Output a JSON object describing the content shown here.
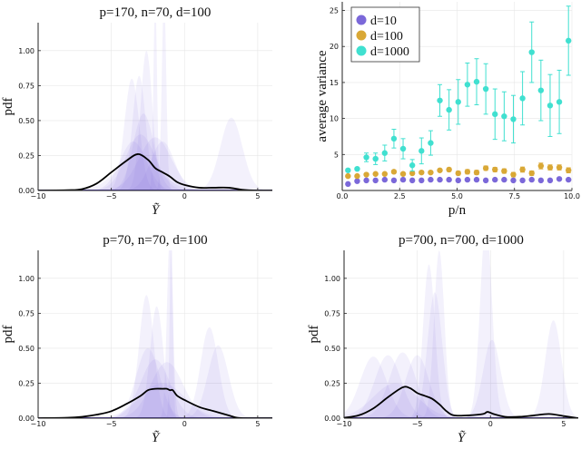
{
  "chart_data": [
    {
      "type": "area",
      "title": "p=170, n=70, d=100",
      "xlabel": "Ỹ",
      "ylabel": "pdf",
      "xlim": [
        -10,
        6
      ],
      "ylim": [
        0,
        1.2
      ],
      "xticks": [
        -10,
        -5,
        0,
        5
      ],
      "yticks": [
        0,
        0.25,
        0.5,
        0.75,
        1.0
      ],
      "xtick_labels": [
        "−10",
        "−5",
        "0",
        "5"
      ],
      "ytick_labels": [
        "0.00",
        "0.25",
        "0.50",
        "0.75",
        "1.00"
      ],
      "grid": true,
      "colors": {
        "mean": "#000000",
        "samples": "#7b68d9"
      },
      "mean_curve": {
        "x": [
          -10,
          -8,
          -7,
          -6,
          -5,
          -4,
          -3.2,
          -2.5,
          -2,
          -1.5,
          -1,
          -0.5,
          0,
          1,
          2,
          3,
          4,
          5,
          6
        ],
        "y": [
          0,
          0.002,
          0.01,
          0.05,
          0.13,
          0.21,
          0.26,
          0.22,
          0.16,
          0.13,
          0.1,
          0.06,
          0.04,
          0.02,
          0.02,
          0.02,
          0.005,
          0,
          0
        ]
      },
      "sample_densities": [
        {
          "mu": -3.1,
          "sigma": 0.45,
          "peak": 0.82
        },
        {
          "mu": -3.6,
          "sigma": 0.5,
          "peak": 0.8
        },
        {
          "mu": -2.6,
          "sigma": 0.4,
          "peak": 1.0
        },
        {
          "mu": -2.0,
          "sigma": 0.12,
          "peak": 1.4
        },
        {
          "mu": -1.4,
          "sigma": 0.15,
          "peak": 1.4
        },
        {
          "mu": -3.0,
          "sigma": 1.0,
          "peak": 0.4
        },
        {
          "mu": -2.0,
          "sigma": 1.1,
          "peak": 0.38
        },
        {
          "mu": -3.5,
          "sigma": 0.9,
          "peak": 0.35
        },
        {
          "mu": -1.5,
          "sigma": 0.8,
          "peak": 0.35
        },
        {
          "mu": -2.8,
          "sigma": 0.7,
          "peak": 0.55
        },
        {
          "mu": 3.2,
          "sigma": 0.75,
          "peak": 0.52
        },
        {
          "mu": -3.2,
          "sigma": 1.4,
          "peak": 0.25
        }
      ]
    },
    {
      "type": "scatter",
      "xlabel": "p/n",
      "ylabel": "average variance",
      "xlim": [
        0,
        10
      ],
      "ylim": [
        0,
        26.2
      ],
      "xticks": [
        0,
        2.5,
        5,
        7.5,
        10
      ],
      "yticks": [
        5,
        10,
        15,
        20,
        25
      ],
      "xtick_labels": [
        "0.0",
        "2.5",
        "5.0",
        "7.5",
        "10.0"
      ],
      "ytick_labels": [
        "5",
        "10",
        "15",
        "20",
        "25"
      ],
      "grid": true,
      "legend_position": "top-left",
      "x": [
        0.25,
        0.65,
        1.05,
        1.45,
        1.85,
        2.25,
        2.65,
        3.05,
        3.45,
        3.85,
        4.25,
        4.65,
        5.05,
        5.45,
        5.85,
        6.25,
        6.65,
        7.05,
        7.45,
        7.85,
        8.25,
        8.65,
        9.05,
        9.45,
        9.85
      ],
      "series": [
        {
          "name": "d=10",
          "color": "#7b68d9",
          "values": [
            0.9,
            1.3,
            1.4,
            1.4,
            1.5,
            1.4,
            1.5,
            1.4,
            1.4,
            1.5,
            1.5,
            1.5,
            1.4,
            1.5,
            1.5,
            1.4,
            1.5,
            1.5,
            1.4,
            1.4,
            1.5,
            1.4,
            1.4,
            1.6,
            1.5
          ],
          "errors": [
            0.1,
            0.1,
            0.1,
            0.1,
            0.1,
            0.1,
            0.1,
            0.1,
            0.1,
            0.1,
            0.1,
            0.1,
            0.1,
            0.1,
            0.1,
            0.1,
            0.1,
            0.1,
            0.1,
            0.1,
            0.1,
            0.1,
            0.1,
            0.15,
            0.1
          ]
        },
        {
          "name": "d=100",
          "color": "#d9a836",
          "values": [
            2.0,
            2.0,
            2.2,
            2.3,
            2.3,
            2.6,
            2.3,
            2.4,
            2.5,
            2.5,
            2.8,
            2.9,
            2.4,
            2.6,
            2.5,
            3.1,
            2.9,
            2.7,
            2.2,
            2.9,
            2.4,
            3.4,
            3.2,
            3.2,
            2.8
          ],
          "errors": [
            0.1,
            0.1,
            0.15,
            0.15,
            0.15,
            0.2,
            0.15,
            0.2,
            0.2,
            0.2,
            0.2,
            0.25,
            0.25,
            0.3,
            0.3,
            0.3,
            0.3,
            0.3,
            0.3,
            0.35,
            0.3,
            0.4,
            0.35,
            0.35,
            0.35
          ]
        },
        {
          "name": "d=1000",
          "color": "#40e0d0",
          "values": [
            2.8,
            3.0,
            4.6,
            4.4,
            5.2,
            7.2,
            5.8,
            3.5,
            5.5,
            6.6,
            12.5,
            11.2,
            12.3,
            14.7,
            15.1,
            14.1,
            10.6,
            10.3,
            9.9,
            12.8,
            19.2,
            13.9,
            11.8,
            12.3,
            20.8
          ],
          "errors": [
            0.2,
            0.2,
            0.6,
            0.8,
            1.1,
            1.3,
            1.4,
            0.8,
            1.8,
            1.7,
            2.2,
            2.8,
            3.1,
            3.0,
            3.2,
            3.5,
            3.5,
            3.4,
            3.3,
            3.7,
            4.2,
            4.2,
            4.3,
            4.4,
            4.8
          ]
        }
      ]
    },
    {
      "type": "area",
      "title": "p=70, n=70, d=100",
      "xlabel": "Ỹ",
      "ylabel": "pdf",
      "xlim": [
        -10,
        6
      ],
      "ylim": [
        0,
        1.2
      ],
      "xticks": [
        -10,
        -5,
        0,
        5
      ],
      "yticks": [
        0,
        0.25,
        0.5,
        0.75,
        1.0
      ],
      "xtick_labels": [
        "−10",
        "−5",
        "0",
        "5"
      ],
      "ytick_labels": [
        "0.00",
        "0.25",
        "0.50",
        "0.75",
        "1.00"
      ],
      "grid": true,
      "colors": {
        "mean": "#000000",
        "samples": "#7b68d9"
      },
      "mean_curve": {
        "x": [
          -10,
          -8,
          -7,
          -6,
          -5,
          -4,
          -3,
          -2.5,
          -2,
          -1.5,
          -1.2,
          -1,
          -0.8,
          -0.5,
          0,
          1,
          2,
          3,
          3.5,
          4,
          6
        ],
        "y": [
          0,
          0.003,
          0.01,
          0.025,
          0.05,
          0.1,
          0.16,
          0.2,
          0.21,
          0.21,
          0.21,
          0.2,
          0.2,
          0.16,
          0.13,
          0.08,
          0.05,
          0.02,
          0.005,
          0,
          0
        ]
      },
      "sample_densities": [
        {
          "mu": -2.6,
          "sigma": 0.5,
          "peak": 0.88
        },
        {
          "mu": -1.9,
          "sigma": 0.45,
          "peak": 0.8
        },
        {
          "mu": -0.9,
          "sigma": 0.1,
          "peak": 1.4
        },
        {
          "mu": -1.0,
          "sigma": 0.2,
          "peak": 1.3
        },
        {
          "mu": -2.0,
          "sigma": 1.0,
          "peak": 0.42
        },
        {
          "mu": -1.2,
          "sigma": 1.1,
          "peak": 0.4
        },
        {
          "mu": -2.5,
          "sigma": 0.8,
          "peak": 0.5
        },
        {
          "mu": 1.7,
          "sigma": 0.6,
          "peak": 0.65
        },
        {
          "mu": 2.3,
          "sigma": 0.7,
          "peak": 0.52
        },
        {
          "mu": -1.5,
          "sigma": 1.5,
          "peak": 0.25
        }
      ]
    },
    {
      "type": "area",
      "title": "p=700, n=700, d=1000",
      "xlabel": "Ỹ",
      "ylabel": "pdf",
      "xlim": [
        -10,
        6
      ],
      "ylim": [
        0,
        1.2
      ],
      "xticks": [
        -10,
        -5,
        0,
        5
      ],
      "yticks": [
        0,
        0.25,
        0.5,
        0.75,
        1.0
      ],
      "xtick_labels": [
        "−10",
        "−5",
        "0",
        "5"
      ],
      "ytick_labels": [
        "0.00",
        "0.25",
        "0.50",
        "0.75",
        "1.00"
      ],
      "grid": true,
      "colors": {
        "mean": "#000000",
        "samples": "#7b68d9"
      },
      "mean_curve": {
        "x": [
          -10,
          -9,
          -8,
          -7,
          -6,
          -5.5,
          -5,
          -4.5,
          -4,
          -3.5,
          -3,
          -2.5,
          -1.5,
          -0.5,
          -0.2,
          0.2,
          1,
          2,
          3,
          4,
          5,
          6
        ],
        "y": [
          0.003,
          0.02,
          0.07,
          0.15,
          0.22,
          0.215,
          0.18,
          0.16,
          0.14,
          0.1,
          0.05,
          0.02,
          0.02,
          0.03,
          0.045,
          0.03,
          0.01,
          0.01,
          0.02,
          0.03,
          0.015,
          0
        ]
      },
      "sample_densities": [
        {
          "mu": -8.0,
          "sigma": 0.9,
          "peak": 0.44
        },
        {
          "mu": -7.0,
          "sigma": 0.9,
          "peak": 0.45
        },
        {
          "mu": -6.0,
          "sigma": 0.9,
          "peak": 0.47
        },
        {
          "mu": -5.0,
          "sigma": 0.8,
          "peak": 0.45
        },
        {
          "mu": -4.2,
          "sigma": 0.4,
          "peak": 1.1
        },
        {
          "mu": -3.5,
          "sigma": 0.35,
          "peak": 1.2
        },
        {
          "mu": -3.8,
          "sigma": 0.5,
          "peak": 0.9
        },
        {
          "mu": -0.3,
          "sigma": 0.4,
          "peak": 1.4
        },
        {
          "mu": 0.1,
          "sigma": 0.6,
          "peak": 0.56
        },
        {
          "mu": 4.3,
          "sigma": 0.55,
          "peak": 0.7
        },
        {
          "mu": -6.5,
          "sigma": 1.5,
          "peak": 0.25
        }
      ]
    }
  ]
}
